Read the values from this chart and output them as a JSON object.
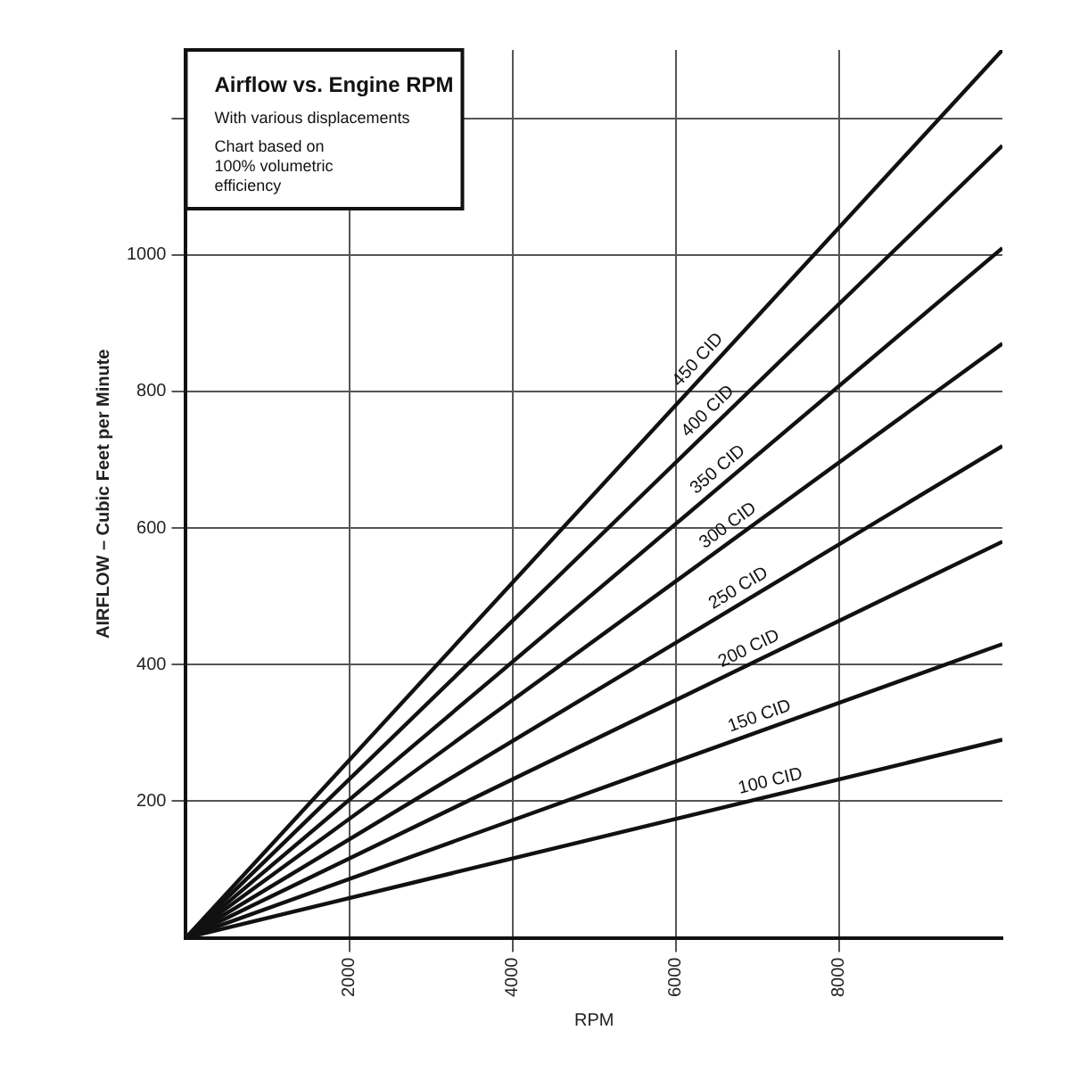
{
  "chart_data": {
    "type": "line",
    "title": "Airflow vs. Engine RPM",
    "subtitle": "With various displacements",
    "annotations": [
      "Chart based on 100% volumetric efficiency"
    ],
    "xlabel": "RPM",
    "ylabel": "AIRFLOW – Cubic Feet per Minute",
    "xlim": [
      0,
      10000
    ],
    "xticks": [
      2000,
      4000,
      6000,
      8000
    ],
    "ylim": [
      0,
      1300
    ],
    "yticks": [
      200,
      400,
      600,
      800,
      1000,
      {
        "value": 1200,
        "label": null
      }
    ],
    "grid": true,
    "legend": false,
    "marker": "none",
    "line_style": "solid",
    "x": [
      0,
      10000
    ],
    "series": [
      {
        "name": "450 CID",
        "color": "#111111",
        "values": [
          0,
          1300
        ]
      },
      {
        "name": "400 CID",
        "color": "#111111",
        "values": [
          0,
          1160
        ]
      },
      {
        "name": "350 CID",
        "color": "#111111",
        "values": [
          0,
          1010
        ]
      },
      {
        "name": "300 CID",
        "color": "#111111",
        "values": [
          0,
          870
        ]
      },
      {
        "name": "250 CID",
        "color": "#111111",
        "values": [
          0,
          720
        ]
      },
      {
        "name": "200 CID",
        "color": "#111111",
        "values": [
          0,
          580
        ]
      },
      {
        "name": "150 CID",
        "color": "#111111",
        "values": [
          0,
          430
        ]
      },
      {
        "name": "100 CID",
        "color": "#111111",
        "values": [
          0,
          290
        ]
      }
    ]
  }
}
